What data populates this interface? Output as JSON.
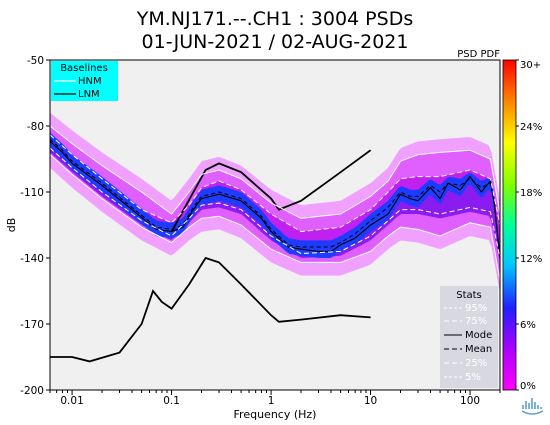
{
  "title_line1": "YM.NJ171.--.CH1 : 3004 PSDs",
  "title_line2": "01-JUN-2021 / 02-AUG-2021",
  "psd_pdf_label": "PSD PDF",
  "baselines": {
    "header": "Baselines",
    "items": [
      {
        "label": "HNM",
        "color": "#ffffff"
      },
      {
        "label": "LNM",
        "color": "#000000"
      }
    ],
    "background": "#00ffff"
  },
  "stats": {
    "header": "Stats",
    "items": [
      {
        "label": "95%",
        "color": "#ffffff",
        "dash": "3,2"
      },
      {
        "label": "75%",
        "color": "#ffffff",
        "dash": "5,3"
      },
      {
        "label": "Mode",
        "color": "#000000",
        "dash": ""
      },
      {
        "label": "Mean",
        "color": "#000000",
        "dash": "5,3"
      },
      {
        "label": "25%",
        "color": "#ffffff",
        "dash": "5,3"
      },
      {
        "label": "5%",
        "color": "#ffffff",
        "dash": "3,2"
      }
    ],
    "background": "#d8d8e0"
  },
  "colorbar": {
    "labels": [
      "30+",
      "24%",
      "18%",
      "12%",
      "6%",
      "0%"
    ],
    "min_pct": 0,
    "max_pct": 30,
    "colors": [
      "#ff00ff",
      "#a020f0",
      "#2020ff",
      "#00ccff",
      "#00ff80",
      "#ffff00",
      "#ff8000",
      "#ff0000"
    ]
  },
  "chart_data": {
    "type": "area",
    "title": "YM.NJ171.--.CH1 : 3004 PSDs",
    "subtitle": "01-JUN-2021 / 02-AUG-2021",
    "xlabel": "Frequency (Hz)",
    "ylabel": "dB",
    "xscale": "log",
    "xlim": [
      0.006,
      200
    ],
    "ylim": [
      -200,
      -50
    ],
    "xticks": [
      0.01,
      0.1,
      1,
      10,
      100
    ],
    "xtick_labels": [
      "0.01",
      "0.1",
      "1",
      "10",
      "100"
    ],
    "yticks": [
      -200,
      -170,
      -140,
      -110,
      -80,
      -50
    ],
    "ytick_labels": [
      "-200",
      "-170",
      "-140",
      "-110",
      "-80",
      "-50"
    ],
    "series": [
      {
        "name": "HNM",
        "x": [
          0.1,
          0.22,
          0.3,
          0.5,
          1,
          1.2,
          2,
          5,
          10
        ],
        "y": [
          -128,
          -100,
          -97,
          -101,
          -113,
          -118,
          -114,
          -101,
          -91
        ]
      },
      {
        "name": "LNM",
        "x": [
          0.006,
          0.01,
          0.015,
          0.03,
          0.05,
          0.065,
          0.08,
          0.1,
          0.15,
          0.22,
          0.3,
          0.5,
          1,
          1.2,
          2,
          5,
          10
        ],
        "y": [
          -185,
          -185,
          -187,
          -183,
          -170,
          -155,
          -160,
          -163,
          -152,
          -140,
          -142,
          -152,
          -166,
          -169,
          -168,
          -166,
          -167
        ]
      },
      {
        "name": "Mode",
        "x": [
          0.006,
          0.008,
          0.01,
          0.02,
          0.04,
          0.07,
          0.1,
          0.13,
          0.16,
          0.2,
          0.3,
          0.5,
          0.8,
          1,
          1.5,
          2,
          3,
          4,
          5,
          7,
          10,
          15,
          20,
          25,
          30,
          40,
          50,
          60,
          80,
          100,
          130,
          160,
          175,
          200
        ],
        "y": [
          -87,
          -92,
          -97,
          -107,
          -118,
          -127,
          -128,
          -126,
          -119,
          -113,
          -111,
          -114,
          -122,
          -128,
          -135,
          -136,
          -137,
          -137,
          -134,
          -131,
          -125,
          -120,
          -111,
          -113,
          -114,
          -108,
          -113,
          -106,
          -109,
          -103,
          -110,
          -105,
          -115,
          -140
        ]
      },
      {
        "name": "Mean",
        "x": [
          0.006,
          0.008,
          0.01,
          0.02,
          0.04,
          0.07,
          0.1,
          0.13,
          0.16,
          0.2,
          0.3,
          0.5,
          0.8,
          1,
          1.5,
          2,
          3,
          4,
          5,
          7,
          10,
          15,
          20,
          25,
          30,
          40,
          50,
          60,
          80,
          100,
          130,
          160,
          175,
          200
        ],
        "y": [
          -86,
          -91,
          -96,
          -106,
          -117,
          -126,
          -127,
          -125,
          -118,
          -112,
          -110,
          -113,
          -121,
          -127,
          -134,
          -135,
          -135,
          -135,
          -133,
          -129,
          -123,
          -117,
          -110,
          -112,
          -112,
          -107,
          -110,
          -106,
          -107,
          -104,
          -108,
          -106,
          -114,
          -140
        ]
      },
      {
        "name": "95%",
        "x": [
          0.006,
          0.01,
          0.02,
          0.05,
          0.1,
          0.15,
          0.2,
          0.3,
          0.5,
          1,
          2,
          5,
          10,
          15,
          20,
          30,
          50,
          100,
          160,
          200
        ],
        "y": [
          -80,
          -88,
          -98,
          -110,
          -120,
          -110,
          -102,
          -100,
          -104,
          -115,
          -122,
          -120,
          -112,
          -105,
          -96,
          -93,
          -92,
          -91,
          -95,
          -120
        ]
      },
      {
        "name": "75%",
        "x": [
          0.006,
          0.01,
          0.02,
          0.05,
          0.1,
          0.15,
          0.2,
          0.3,
          0.5,
          1,
          2,
          5,
          10,
          15,
          20,
          30,
          50,
          100,
          160,
          200
        ],
        "y": [
          -84,
          -93,
          -104,
          -118,
          -124,
          -116,
          -108,
          -105,
          -109,
          -120,
          -128,
          -126,
          -118,
          -110,
          -104,
          -103,
          -103,
          -100,
          -104,
          -125
        ]
      },
      {
        "name": "25%",
        "x": [
          0.006,
          0.01,
          0.02,
          0.05,
          0.1,
          0.15,
          0.2,
          0.3,
          0.5,
          1,
          2,
          5,
          10,
          15,
          20,
          30,
          50,
          100,
          160,
          200
        ],
        "y": [
          -90,
          -99,
          -110,
          -123,
          -130,
          -122,
          -116,
          -115,
          -118,
          -130,
          -138,
          -137,
          -130,
          -123,
          -118,
          -118,
          -120,
          -117,
          -119,
          -140
        ]
      },
      {
        "name": "5%",
        "x": [
          0.006,
          0.01,
          0.02,
          0.05,
          0.1,
          0.15,
          0.2,
          0.3,
          0.5,
          1,
          2,
          5,
          10,
          15,
          20,
          30,
          50,
          100,
          160,
          200
        ],
        "y": [
          -93,
          -102,
          -113,
          -126,
          -133,
          -126,
          -122,
          -121,
          -125,
          -136,
          -142,
          -142,
          -137,
          -130,
          -126,
          -127,
          -130,
          -124,
          -126,
          -150
        ]
      }
    ]
  }
}
